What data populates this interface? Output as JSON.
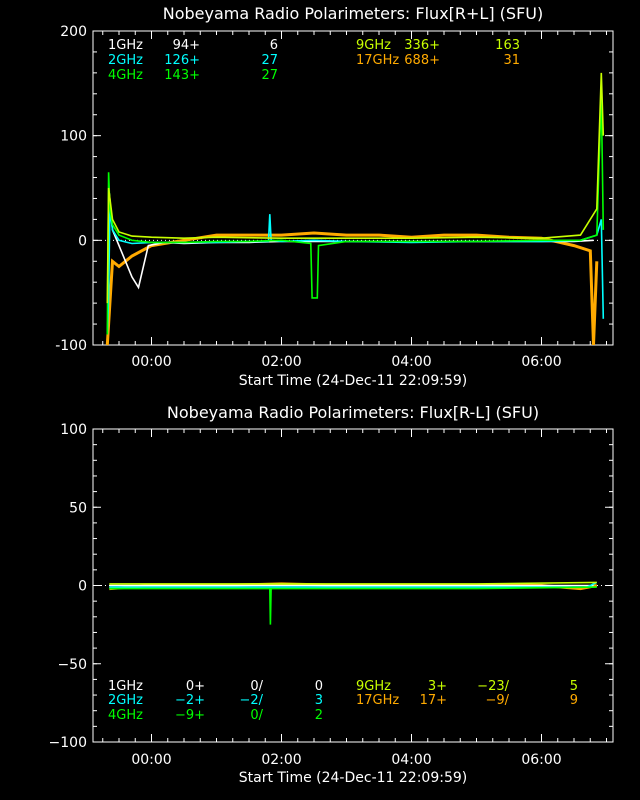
{
  "chart_data": [
    {
      "type": "line",
      "title": "Nobeyama Radio Polarimeters: Flux[R+L] (SFU)",
      "xlabel": "Start Time (24-Dec-11 22:09:59)",
      "ylabel": "",
      "ylim": [
        -100,
        200
      ],
      "xlim": [
        -0.9,
        7.1
      ],
      "x_ticks": [
        0,
        2,
        4,
        6
      ],
      "x_tick_labels": [
        "00:00",
        "02:00",
        "04:00",
        "06:00"
      ],
      "y_ticks": [
        -100,
        0,
        100,
        200
      ],
      "y_tick_labels": [
        "-100",
        "0",
        "100",
        "200"
      ],
      "grid": false,
      "legend_rows": [
        [
          "1GHz",
          "94+",
          "6",
          "9GHz",
          "336+",
          "163"
        ],
        [
          "2GHz",
          "126+",
          "27",
          "17GHz",
          "688+",
          "31"
        ],
        [
          "4GHz",
          "143+",
          "27",
          "",
          "",
          ""
        ]
      ],
      "series": [
        {
          "name": "1GHz",
          "color": "#ffffff",
          "x": [
            -0.65,
            -0.6,
            -0.5,
            -0.4,
            -0.3,
            -0.2,
            -0.05,
            0.2,
            0.5,
            1.0,
            1.5,
            2.0,
            3.0,
            4.0,
            5.0,
            6.0,
            6.5,
            6.8
          ],
          "y": [
            45,
            10,
            -5,
            -20,
            -35,
            -45,
            -5,
            -2,
            -3,
            -2,
            -2,
            -1,
            -1,
            -1,
            -1,
            -1,
            -1,
            0
          ]
        },
        {
          "name": "2GHz",
          "color": "#00ffff",
          "x": [
            -0.68,
            -0.66,
            -0.64,
            -0.6,
            -0.5,
            -0.3,
            0.0,
            0.5,
            1.0,
            1.5,
            1.8,
            1.82,
            1.84,
            2.0,
            2.5,
            3.0,
            4.0,
            5.0,
            6.0,
            6.6,
            6.85,
            6.92,
            6.95
          ],
          "y": [
            -90,
            -55,
            30,
            10,
            0,
            -3,
            -2,
            -2,
            -2,
            -1,
            -1,
            25,
            0,
            -1,
            0,
            -1,
            -2,
            -1,
            -1,
            0,
            5,
            20,
            -75
          ]
        },
        {
          "name": "4GHz",
          "color": "#00ff00",
          "x": [
            -0.68,
            -0.66,
            -0.64,
            -0.6,
            -0.5,
            -0.3,
            0.0,
            0.5,
            1.0,
            1.5,
            2.0,
            2.45,
            2.47,
            2.55,
            2.57,
            3.0,
            4.0,
            5.0,
            6.0,
            6.6,
            6.85,
            6.92,
            6.95
          ],
          "y": [
            -90,
            65,
            30,
            15,
            5,
            0,
            -2,
            -2,
            -1,
            -1,
            0,
            -3,
            -55,
            -55,
            -5,
            -1,
            -1,
            -1,
            0,
            0,
            5,
            140,
            10
          ]
        },
        {
          "name": "9GHz",
          "color": "#c8ff00",
          "x": [
            -0.68,
            -0.66,
            -0.6,
            -0.5,
            -0.3,
            0.0,
            0.5,
            1.0,
            2.0,
            3.0,
            4.0,
            5.0,
            6.0,
            6.6,
            6.85,
            6.92,
            6.95
          ],
          "y": [
            -60,
            50,
            20,
            8,
            4,
            3,
            2,
            3,
            2,
            2,
            2,
            3,
            2,
            5,
            30,
            160,
            100
          ]
        },
        {
          "name": "17GHz",
          "color": "#ffaa00",
          "x": [
            -0.68,
            -0.6,
            -0.5,
            -0.3,
            0.0,
            0.5,
            1.0,
            1.5,
            2.0,
            2.5,
            3.0,
            3.5,
            4.0,
            4.5,
            5.0,
            5.5,
            6.0,
            6.5,
            6.75,
            6.8,
            6.85
          ],
          "y": [
            -100,
            -20,
            -25,
            -15,
            -5,
            0,
            5,
            5,
            5,
            7,
            5,
            5,
            3,
            5,
            5,
            3,
            2,
            -5,
            -10,
            -100,
            -20
          ]
        }
      ]
    },
    {
      "type": "line",
      "title": "Nobeyama Radio Polarimeters: Flux[R-L] (SFU)",
      "xlabel": "Start Time (24-Dec-11 22:09:59)",
      "ylabel": "",
      "ylim": [
        -100,
        100
      ],
      "xlim": [
        -0.9,
        7.1
      ],
      "x_ticks": [
        0,
        2,
        4,
        6
      ],
      "x_tick_labels": [
        "00:00",
        "02:00",
        "04:00",
        "06:00"
      ],
      "y_ticks": [
        -100,
        -50,
        0,
        50,
        100
      ],
      "y_tick_labels": [
        "−100",
        "−50",
        "0",
        "50",
        "100"
      ],
      "grid": false,
      "legend_rows": [
        [
          "1GHz",
          "0+",
          "0/",
          "0",
          "9GHz",
          "3+",
          "−23/",
          "5"
        ],
        [
          "2GHz",
          "−2+",
          "−2/",
          "3",
          "17GHz",
          "17+",
          "−9/",
          "9"
        ],
        [
          "4GHz",
          "−9+",
          "0/",
          "2",
          "",
          "",
          "",
          ""
        ]
      ],
      "series": [
        {
          "name": "1GHz",
          "color": "#ffffff",
          "x": [
            -0.65,
            0.5,
            2.0,
            4.0,
            6.0,
            6.8
          ],
          "y": [
            0,
            0,
            0,
            0,
            0,
            0
          ]
        },
        {
          "name": "2GHz",
          "color": "#00ffff",
          "x": [
            -0.65,
            0.5,
            2.0,
            4.0,
            6.0,
            6.7,
            6.85
          ],
          "y": [
            -1,
            -1,
            -1,
            -1,
            -1,
            -1,
            2
          ]
        },
        {
          "name": "4GHz",
          "color": "#00ff00",
          "x": [
            -0.65,
            1.0,
            1.82,
            1.83,
            1.84,
            3.0,
            5.0,
            6.85
          ],
          "y": [
            -2,
            -2,
            -2,
            -25,
            -2,
            -2,
            -2,
            -1
          ]
        },
        {
          "name": "9GHz",
          "color": "#c8ff00",
          "x": [
            -0.65,
            1.0,
            3.0,
            5.0,
            6.85
          ],
          "y": [
            1,
            1,
            1,
            1,
            2
          ]
        },
        {
          "name": "17GHz",
          "color": "#ffaa00",
          "x": [
            -0.65,
            0.0,
            1.0,
            2.0,
            3.0,
            4.0,
            5.0,
            6.0,
            6.6,
            6.85
          ],
          "y": [
            -2,
            0,
            0,
            1,
            0,
            0,
            0,
            0,
            -2,
            0
          ]
        }
      ]
    }
  ]
}
